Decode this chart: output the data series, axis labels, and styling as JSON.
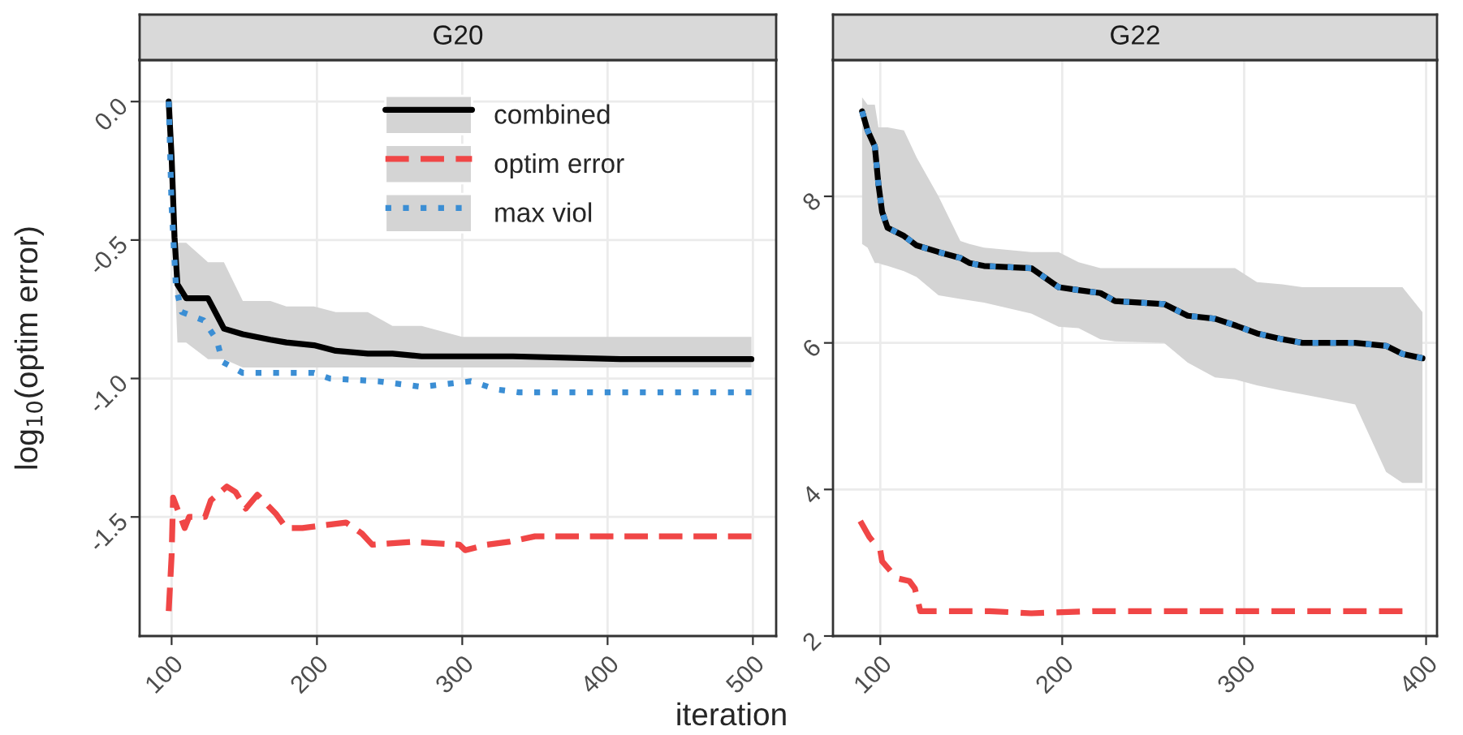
{
  "chart_data": [
    {
      "type": "line",
      "title": "G20",
      "xlabel": "iteration",
      "ylabel": "log$_{10}$(optim error)",
      "legend": "top right",
      "grid": true,
      "xlim": [
        78,
        516
      ],
      "ylim": [
        -1.93,
        0.15
      ],
      "xticks": [
        100,
        200,
        300,
        400,
        500
      ],
      "yticks": [
        {
          "value": -1.5,
          "label": "-1.5"
        },
        {
          "value": -1.0,
          "label": "-1.0"
        },
        {
          "value": -0.5,
          "label": "-0.5"
        },
        {
          "value": 0.0,
          "label": "0.0"
        }
      ],
      "series": [
        {
          "name": "combined",
          "color": "#000000",
          "line_style": "solid",
          "x": [
            98,
            100,
            102,
            104,
            110,
            125,
            131,
            136,
            149,
            168,
            179,
            198,
            213,
            235,
            252,
            272,
            300,
            335,
            410,
            499
          ],
          "values": [
            0.0,
            -0.2,
            -0.49,
            -0.66,
            -0.71,
            -0.71,
            -0.77,
            -0.82,
            -0.84,
            -0.86,
            -0.87,
            -0.88,
            -0.9,
            -0.91,
            -0.91,
            -0.92,
            -0.92,
            -0.92,
            -0.93,
            -0.93
          ],
          "upper": [
            0.02,
            -0.15,
            -0.45,
            -0.51,
            -0.51,
            -0.58,
            -0.58,
            -0.58,
            -0.72,
            -0.72,
            -0.74,
            -0.74,
            -0.76,
            -0.76,
            -0.81,
            -0.81,
            -0.85,
            -0.85,
            -0.85,
            -0.85
          ],
          "lower": [
            -0.05,
            -0.3,
            -0.6,
            -0.87,
            -0.87,
            -0.93,
            -0.93,
            -0.93,
            -0.96,
            -0.96,
            -0.96,
            -0.96,
            -0.96,
            -0.96,
            -0.96,
            -0.96,
            -0.96,
            -0.96,
            -0.96,
            -0.96
          ]
        },
        {
          "name": "optim error",
          "color": "#f04646",
          "line_style": "dashed",
          "x": [
            98,
            100,
            101,
            109,
            112,
            123,
            127,
            138,
            144,
            151,
            159,
            172,
            179,
            190,
            205,
            220,
            231,
            238,
            265,
            298,
            302,
            317,
            332,
            350,
            499
          ],
          "values": [
            -1.84,
            -1.64,
            -1.43,
            -1.54,
            -1.5,
            -1.5,
            -1.44,
            -1.39,
            -1.41,
            -1.47,
            -1.42,
            -1.49,
            -1.54,
            -1.54,
            -1.53,
            -1.52,
            -1.56,
            -1.6,
            -1.59,
            -1.6,
            -1.62,
            -1.6,
            -1.59,
            -1.57,
            -1.57
          ]
        },
        {
          "name": "max viol",
          "color": "#3b8ed4",
          "line_style": "dotted",
          "x": [
            98,
            100,
            103,
            107,
            122,
            131,
            135,
            149,
            176,
            198,
            209,
            242,
            272,
            306,
            324,
            339,
            499
          ],
          "values": [
            0.0,
            -0.38,
            -0.67,
            -0.76,
            -0.79,
            -0.86,
            -0.94,
            -0.98,
            -0.98,
            -0.98,
            -1.0,
            -1.01,
            -1.03,
            -1.01,
            -1.04,
            -1.05,
            -1.05
          ]
        }
      ]
    },
    {
      "type": "line",
      "title": "G22",
      "grid": true,
      "xlim": [
        74,
        406
      ],
      "ylim": [
        2,
        9.86
      ],
      "xticks": [
        100,
        200,
        300,
        400
      ],
      "yticks": [
        2,
        4,
        6,
        8
      ],
      "series": [
        {
          "color": "#000000",
          "line_style": "solid",
          "x": [
            90,
            93,
            97,
            99,
            101,
            104,
            113,
            120,
            132,
            144,
            149,
            157,
            183,
            198,
            209,
            221,
            229,
            256,
            269,
            284,
            295,
            307,
            321,
            332,
            361,
            378,
            387,
            398
          ],
          "values": [
            9.16,
            8.9,
            8.68,
            8.16,
            7.79,
            7.57,
            7.46,
            7.33,
            7.24,
            7.16,
            7.09,
            7.05,
            7.02,
            6.76,
            6.72,
            6.68,
            6.57,
            6.53,
            6.37,
            6.33,
            6.24,
            6.13,
            6.05,
            6.0,
            6.0,
            5.96,
            5.85,
            5.79
          ],
          "upper": [
            9.35,
            9.25,
            9.25,
            8.94,
            8.94,
            8.94,
            8.9,
            8.53,
            8.0,
            7.39,
            7.35,
            7.3,
            7.24,
            7.24,
            7.1,
            7.02,
            7.02,
            7.02,
            7.02,
            7.02,
            7.02,
            6.83,
            6.8,
            6.76,
            6.76,
            6.76,
            6.76,
            6.42
          ],
          "lower": [
            7.35,
            7.3,
            7.09,
            7.09,
            7.07,
            7.05,
            6.98,
            6.9,
            6.65,
            6.6,
            6.58,
            6.55,
            6.4,
            6.22,
            6.2,
            6.05,
            6.02,
            6.0,
            5.73,
            5.53,
            5.5,
            5.42,
            5.35,
            5.3,
            5.16,
            4.24,
            4.09,
            4.09
          ]
        },
        {
          "color": "#f04646",
          "line_style": "dashed",
          "x": [
            89,
            94,
            100,
            101,
            109,
            116,
            119,
            122,
            160,
            183,
            218,
            387
          ],
          "values": [
            3.57,
            3.35,
            3.17,
            3.02,
            2.79,
            2.75,
            2.65,
            2.34,
            2.34,
            2.31,
            2.34,
            2.34
          ]
        },
        {
          "color": "#3b8ed4",
          "line_style": "dotted",
          "x": [
            90,
            93,
            97,
            99,
            101,
            104,
            113,
            120,
            132,
            144,
            149,
            157,
            183,
            198,
            209,
            221,
            229,
            256,
            269,
            284,
            295,
            307,
            321,
            332,
            361,
            378,
            387,
            398
          ],
          "values": [
            9.16,
            8.9,
            8.68,
            8.16,
            7.79,
            7.57,
            7.46,
            7.33,
            7.24,
            7.16,
            7.09,
            7.05,
            7.02,
            6.76,
            6.72,
            6.68,
            6.57,
            6.53,
            6.37,
            6.33,
            6.24,
            6.13,
            6.05,
            6.0,
            6.0,
            5.96,
            5.85,
            5.79
          ]
        }
      ]
    }
  ]
}
